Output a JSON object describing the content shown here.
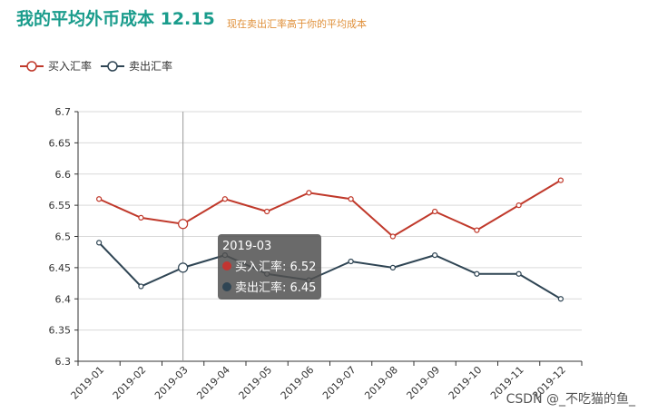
{
  "header": {
    "title": "我的平均外币成本 12.15",
    "subtitle": "现在卖出汇率高于你的平均成本"
  },
  "legend": [
    {
      "label": "买入汇率",
      "color": "#c0392b"
    },
    {
      "label": "卖出汇率",
      "color": "#2f4554"
    }
  ],
  "tooltip": {
    "title": "2019-03",
    "rows": [
      {
        "label": "买入汇率: 6.52",
        "color": "#c23531"
      },
      {
        "label": "卖出汇率: 6.45",
        "color": "#2f4554"
      }
    ]
  },
  "watermark": "CSDN @_不吃猫的鱼_",
  "chart_data": {
    "type": "line",
    "categories": [
      "2019-01",
      "2019-02",
      "2019-03",
      "2019-04",
      "2019-05",
      "2019-06",
      "2019-07",
      "2019-08",
      "2019-09",
      "2019-10",
      "2019-11",
      "2019-12"
    ],
    "series": [
      {
        "name": "买入汇率",
        "color": "#c0392b",
        "values": [
          6.56,
          6.53,
          6.52,
          6.56,
          6.54,
          6.57,
          6.56,
          6.5,
          6.54,
          6.51,
          6.55,
          6.59
        ]
      },
      {
        "name": "卖出汇率",
        "color": "#2f4554",
        "values": [
          6.49,
          6.42,
          6.45,
          6.47,
          6.44,
          6.43,
          6.46,
          6.45,
          6.47,
          6.44,
          6.44,
          6.4
        ]
      }
    ],
    "ylim": [
      6.3,
      6.7
    ],
    "yticks": [
      "6.7",
      "6.65",
      "6.6",
      "6.55",
      "6.5",
      "6.45",
      "6.4",
      "6.35",
      "6.3"
    ],
    "highlight_index": 2,
    "grid": true,
    "legend_position": "top-left"
  }
}
